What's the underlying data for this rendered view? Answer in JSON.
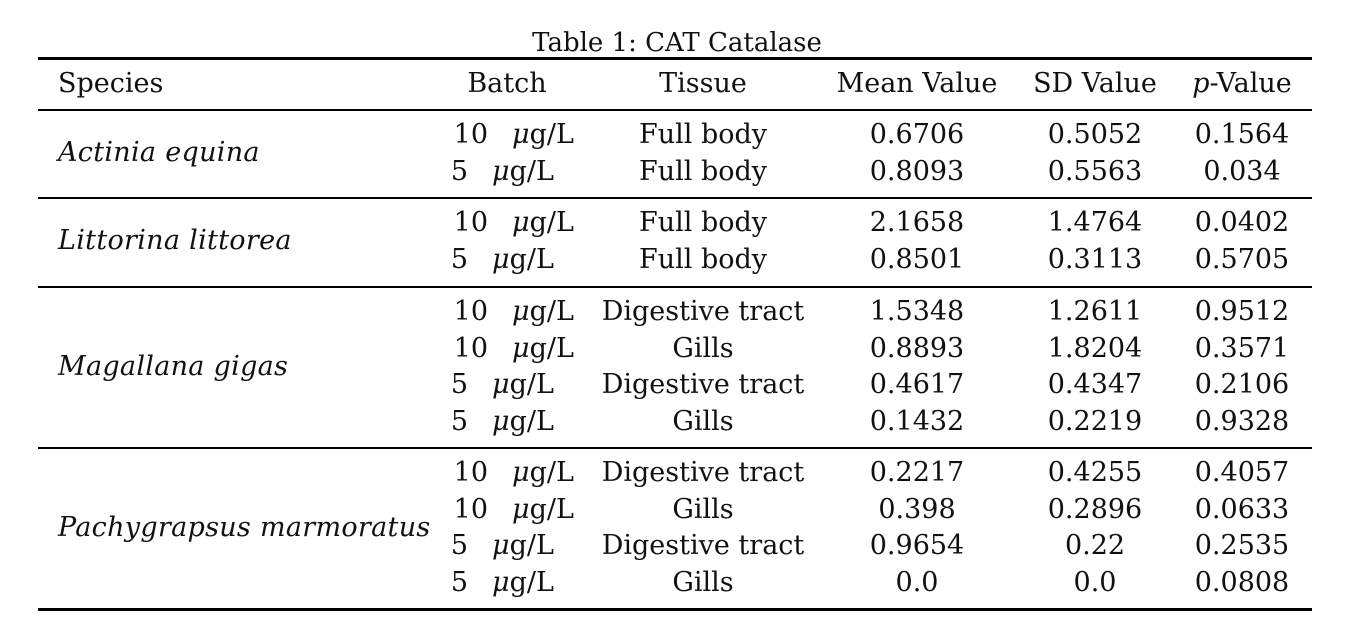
{
  "caption": "Table 1: CAT Catalase",
  "headers": {
    "species": "Species",
    "batch": "Batch",
    "tissue": "Tissue",
    "mean": "Mean Value",
    "sd": "SD Value",
    "p_prefix": "p",
    "p_suffix": "-Value"
  },
  "unit": {
    "mu": "μ",
    "rest": "g/L"
  },
  "groups": [
    {
      "species": "Actinia equina",
      "rows": [
        {
          "batch": "10",
          "tissue": "Full body",
          "mean": "0.6706",
          "sd": "0.5052",
          "p": "0.1564"
        },
        {
          "batch": "5",
          "tissue": "Full body",
          "mean": "0.8093",
          "sd": "0.5563",
          "p": "0.034"
        }
      ]
    },
    {
      "species": "Littorina littorea",
      "rows": [
        {
          "batch": "10",
          "tissue": "Full body",
          "mean": "2.1658",
          "sd": "1.4764",
          "p": "0.0402"
        },
        {
          "batch": "5",
          "tissue": "Full body",
          "mean": "0.8501",
          "sd": "0.3113",
          "p": "0.5705"
        }
      ]
    },
    {
      "species": "Magallana gigas",
      "rows": [
        {
          "batch": "10",
          "tissue": "Digestive tract",
          "mean": "1.5348",
          "sd": "1.2611",
          "p": "0.9512"
        },
        {
          "batch": "10",
          "tissue": "Gills",
          "mean": "0.8893",
          "sd": "1.8204",
          "p": "0.3571"
        },
        {
          "batch": "5",
          "tissue": "Digestive tract",
          "mean": "0.4617",
          "sd": "0.4347",
          "p": "0.2106"
        },
        {
          "batch": "5",
          "tissue": "Gills",
          "mean": "0.1432",
          "sd": "0.2219",
          "p": "0.9328"
        }
      ]
    },
    {
      "species": "Pachygrapsus marmoratus",
      "rows": [
        {
          "batch": "10",
          "tissue": "Digestive tract",
          "mean": "0.2217",
          "sd": "0.4255",
          "p": "0.4057"
        },
        {
          "batch": "10",
          "tissue": "Gills",
          "mean": "0.398",
          "sd": "0.2896",
          "p": "0.0633"
        },
        {
          "batch": "5",
          "tissue": "Digestive tract",
          "mean": "0.9654",
          "sd": "0.22",
          "p": "0.2535"
        },
        {
          "batch": "5",
          "tissue": "Gills",
          "mean": "0.0",
          "sd": "0.0",
          "p": "0.0808"
        }
      ]
    }
  ]
}
